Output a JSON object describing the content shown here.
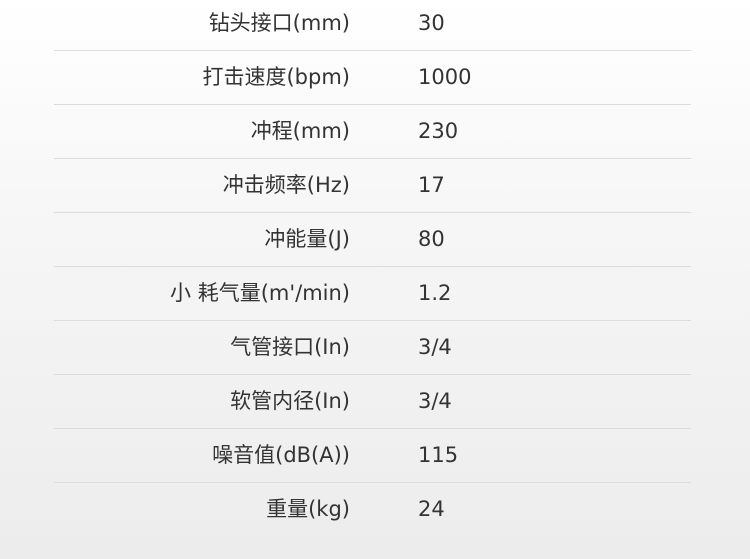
{
  "specs": [
    {
      "label": "钻头接口(mm)",
      "value": "30"
    },
    {
      "label": "打击速度(bpm)",
      "value": "1000"
    },
    {
      "label": "冲程(mm)",
      "value": "230"
    },
    {
      "label": "冲击频率(Hz)",
      "value": "17"
    },
    {
      "label": "冲能量(J)",
      "value": "80"
    },
    {
      "label": "小 耗气量(m'/min)",
      "value": "1.2"
    },
    {
      "label": "气管接口(In)",
      "value": "3/4"
    },
    {
      "label": "软管内径(In)",
      "value": "3/4"
    },
    {
      "label": "噪音值(dB(A))",
      "value": "115"
    },
    {
      "label": "重量(kg)",
      "value": "24"
    }
  ]
}
